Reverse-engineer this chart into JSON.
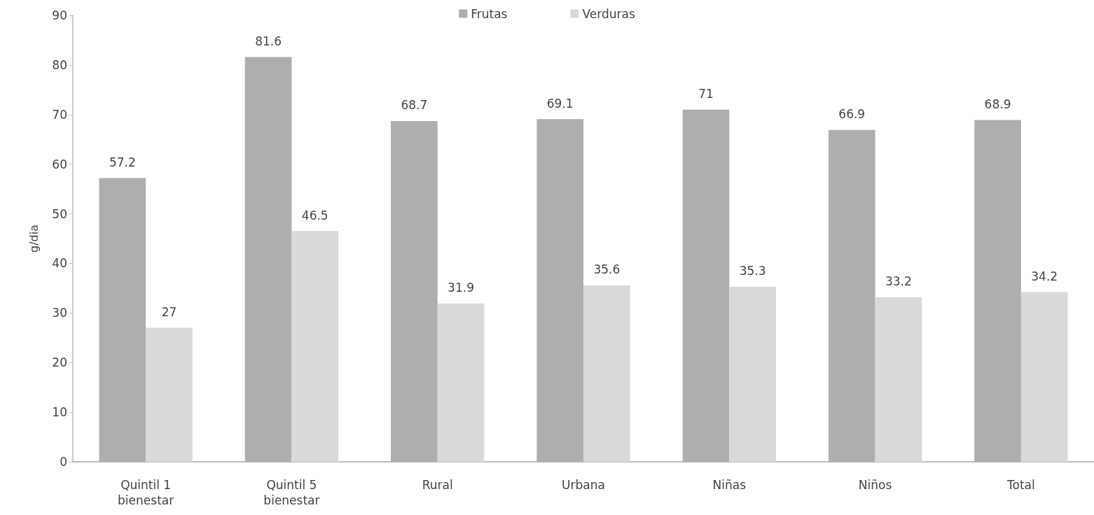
{
  "chart_data": {
    "type": "bar",
    "ylabel": "g/dia",
    "categories": [
      "Quintil 1\nbienestar",
      "Quintil 5\nbienestar",
      "Rural",
      "Urbana",
      "Niñas",
      "Niños",
      "Total"
    ],
    "series": [
      {
        "name": "Frutas",
        "color": "#aeaeae",
        "values": [
          57.2,
          81.6,
          68.7,
          69.1,
          71,
          66.9,
          68.9
        ]
      },
      {
        "name": "Verduras",
        "color": "#d9d9d9",
        "values": [
          27,
          46.5,
          31.9,
          35.6,
          35.3,
          33.2,
          34.2
        ]
      }
    ],
    "ylim": [
      0,
      90
    ],
    "yticks": [
      0,
      10,
      20,
      30,
      40,
      50,
      60,
      70,
      80,
      90
    ],
    "grid": false,
    "legend": "top",
    "data_labels": true
  }
}
